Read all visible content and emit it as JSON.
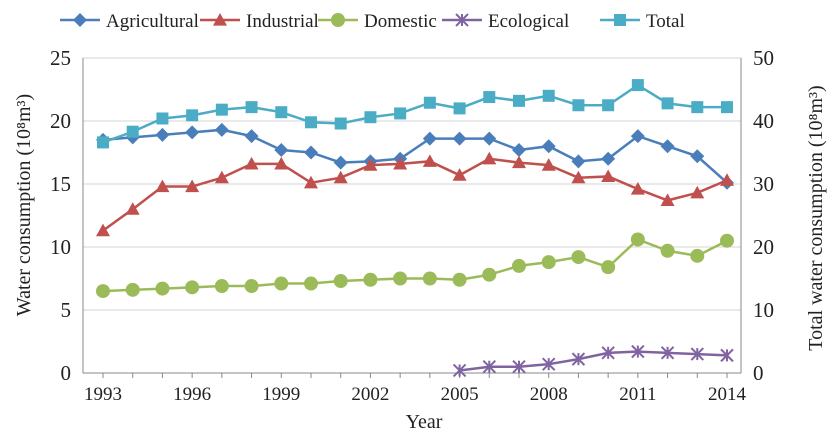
{
  "chart_data": {
    "type": "line",
    "xlabel": "Year",
    "ylabel_left": "Water consumption (10⁸m³)",
    "ylabel_right": "Total water consumption (10⁸m³)",
    "ylim_left": [
      0,
      25
    ],
    "ylim_right": [
      0,
      50
    ],
    "yticks_left": [
      "0",
      "5",
      "10",
      "15",
      "20",
      "25"
    ],
    "yticks_right": [
      "0",
      "10",
      "20",
      "30",
      "40",
      "50"
    ],
    "xlim": [
      1993,
      2014
    ],
    "xticks": [
      "1993",
      "1996",
      "1999",
      "2002",
      "2005",
      "2008",
      "2011",
      "2014"
    ],
    "grid": true,
    "legend_position": "top",
    "series": [
      {
        "name": "Agricultural",
        "color": "#4a7ebb",
        "marker": "diamond",
        "axis": "left",
        "x": [
          1993,
          1994,
          1995,
          1996,
          1997,
          1998,
          1999,
          2000,
          2001,
          2002,
          2003,
          2004,
          2005,
          2006,
          2007,
          2008,
          2009,
          2010,
          2011,
          2012,
          2013,
          2014
        ],
        "values": [
          18.5,
          18.7,
          18.9,
          19.1,
          19.3,
          18.8,
          17.7,
          17.5,
          16.7,
          16.8,
          17.0,
          18.6,
          18.6,
          18.6,
          17.7,
          18.0,
          16.8,
          17.0,
          18.8,
          18.0,
          17.2,
          15.1
        ]
      },
      {
        "name": "Industrial",
        "color": "#c0504d",
        "marker": "triangle",
        "axis": "left",
        "x": [
          1993,
          1994,
          1995,
          1996,
          1997,
          1998,
          1999,
          2000,
          2001,
          2002,
          2003,
          2004,
          2005,
          2006,
          2007,
          2008,
          2009,
          2010,
          2011,
          2012,
          2013,
          2014
        ],
        "values": [
          11.3,
          13.0,
          14.8,
          14.8,
          15.5,
          16.6,
          16.6,
          15.1,
          15.5,
          16.5,
          16.6,
          16.8,
          15.7,
          17.0,
          16.7,
          16.5,
          15.5,
          15.6,
          14.6,
          13.7,
          14.3,
          15.3
        ]
      },
      {
        "name": "Domestic",
        "color": "#9bbb59",
        "marker": "circle",
        "axis": "left",
        "x": [
          1993,
          1994,
          1995,
          1996,
          1997,
          1998,
          1999,
          2000,
          2001,
          2002,
          2003,
          2004,
          2005,
          2006,
          2007,
          2008,
          2009,
          2010,
          2011,
          2012,
          2013,
          2014
        ],
        "values": [
          6.5,
          6.6,
          6.7,
          6.8,
          6.9,
          6.9,
          7.1,
          7.1,
          7.3,
          7.4,
          7.5,
          7.5,
          7.4,
          7.8,
          8.5,
          8.8,
          9.2,
          8.4,
          10.6,
          9.7,
          9.3,
          10.5
        ]
      },
      {
        "name": "Ecological",
        "color": "#8064a2",
        "marker": "star",
        "axis": "left",
        "x": [
          2005,
          2006,
          2007,
          2008,
          2009,
          2010,
          2011,
          2012,
          2013,
          2014
        ],
        "values": [
          0.2,
          0.5,
          0.5,
          0.7,
          1.1,
          1.6,
          1.7,
          1.6,
          1.5,
          1.4
        ]
      },
      {
        "name": "Total",
        "color": "#4bacc6",
        "marker": "square",
        "axis": "right",
        "x": [
          1993,
          1994,
          1995,
          1996,
          1997,
          1998,
          1999,
          2000,
          2001,
          2002,
          2003,
          2004,
          2005,
          2006,
          2007,
          2008,
          2009,
          2010,
          2011,
          2012,
          2013,
          2014
        ],
        "values": [
          36.6,
          38.3,
          40.4,
          40.9,
          41.8,
          42.2,
          41.4,
          39.8,
          39.6,
          40.6,
          41.2,
          42.9,
          42.0,
          43.8,
          43.2,
          44.0,
          42.5,
          42.5,
          45.7,
          42.8,
          42.2,
          42.2
        ]
      }
    ]
  }
}
